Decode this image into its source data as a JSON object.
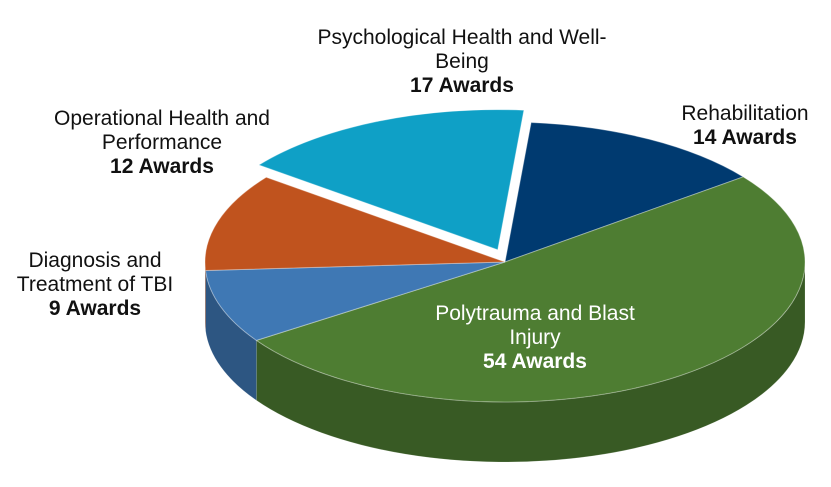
{
  "chart_data": {
    "type": "pie",
    "categories": [
      "Rehabilitation",
      "Polytrauma and Blast Injury",
      "Diagnosis and Treatment of TBI",
      "Operational Health and Performance",
      "Psychological Health and Well-Being"
    ],
    "values": [
      14,
      54,
      9,
      12,
      17
    ],
    "value_labels": [
      "14 Awards",
      "54 Awards",
      "9 Awards",
      "12 Awards",
      "17 Awards"
    ],
    "colors": [
      "#003a70",
      "#4e7d32",
      "#3f78b4",
      "#c0531e",
      "#0fa0c6"
    ],
    "exploded": [
      false,
      false,
      false,
      false,
      true
    ]
  }
}
